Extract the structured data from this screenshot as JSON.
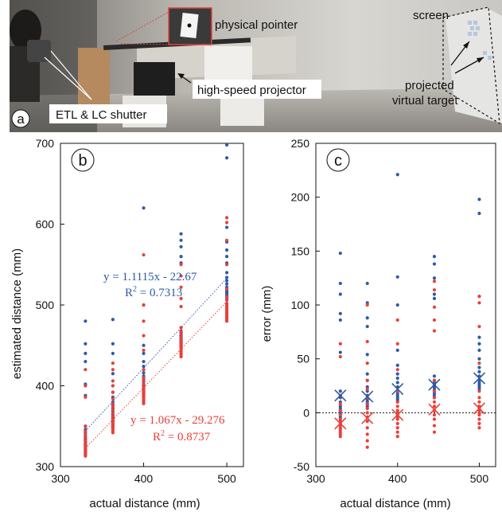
{
  "photo": {
    "panel_label": "a",
    "labels": {
      "physical_pointer": "physical pointer",
      "screen": "screen",
      "high_speed_projector": "high-speed projector",
      "projected_target_line1": "projected",
      "projected_target_line2": "virtual target",
      "etl_lc_shutter": "ETL & LC shutter"
    }
  },
  "chart_data": [
    {
      "type": "scatter",
      "panel_label": "b",
      "xlabel": "actual distance (mm)",
      "ylabel": "estimated distance (mm)",
      "xlim": [
        300,
        520
      ],
      "ylim": [
        300,
        700
      ],
      "xticks": [
        300,
        400,
        500
      ],
      "yticks": [
        300,
        400,
        500,
        600,
        700
      ],
      "grid": false,
      "colors": {
        "blue": "#2e5aa8",
        "red": "#e8403a"
      },
      "series": [
        {
          "color_key": "blue",
          "x": [
            330,
            330,
            330,
            330,
            330,
            330,
            330,
            330,
            330,
            330,
            330,
            330,
            330,
            330,
            330,
            330,
            330,
            330,
            330,
            330,
            363,
            363,
            363,
            363,
            363,
            363,
            363,
            363,
            363,
            363,
            363,
            363,
            363,
            363,
            363,
            363,
            363,
            363,
            363,
            363,
            400,
            400,
            400,
            400,
            400,
            400,
            400,
            400,
            400,
            400,
            400,
            400,
            400,
            400,
            400,
            400,
            400,
            400,
            400,
            400,
            445,
            445,
            445,
            445,
            445,
            445,
            445,
            445,
            445,
            445,
            445,
            445,
            445,
            445,
            445,
            445,
            445,
            445,
            445,
            445,
            500,
            500,
            500,
            500,
            500,
            500,
            500,
            500,
            500,
            500,
            500,
            500,
            500,
            500,
            500,
            500,
            500,
            500,
            500,
            500
          ],
          "y": [
            480,
            452,
            440,
            430,
            402,
            388,
            350,
            346,
            342,
            338,
            336,
            334,
            332,
            330,
            328,
            326,
            324,
            322,
            320,
            318,
            482,
            452,
            440,
            415,
            400,
            392,
            386,
            380,
            376,
            372,
            368,
            364,
            362,
            360,
            358,
            356,
            354,
            352,
            350,
            348,
            620,
            500,
            450,
            440,
            430,
            424,
            420,
            416,
            412,
            408,
            405,
            402,
            400,
            398,
            396,
            394,
            392,
            390,
            388,
            386,
            588,
            580,
            572,
            560,
            552,
            472,
            468,
            466,
            464,
            462,
            460,
            458,
            456,
            455,
            454,
            453,
            452,
            451,
            450,
            449,
            698,
            682,
            596,
            578,
            568,
            560,
            552,
            540,
            534,
            530,
            526,
            522,
            520,
            518,
            516,
            514,
            512,
            510,
            508,
            506
          ]
        },
        {
          "color_key": "red",
          "x": [
            330,
            330,
            330,
            330,
            330,
            330,
            330,
            330,
            330,
            330,
            330,
            330,
            330,
            330,
            330,
            330,
            330,
            330,
            330,
            330,
            363,
            363,
            363,
            363,
            363,
            363,
            363,
            363,
            363,
            363,
            363,
            363,
            363,
            363,
            363,
            363,
            363,
            363,
            363,
            363,
            400,
            400,
            400,
            400,
            400,
            400,
            400,
            400,
            400,
            400,
            400,
            400,
            400,
            400,
            400,
            400,
            400,
            400,
            400,
            400,
            445,
            445,
            445,
            445,
            445,
            445,
            445,
            445,
            445,
            445,
            445,
            445,
            445,
            445,
            445,
            445,
            445,
            445,
            445,
            445,
            500,
            500,
            500,
            500,
            500,
            500,
            500,
            500,
            500,
            500,
            500,
            500,
            500,
            500,
            500,
            500,
            500,
            500,
            500,
            500
          ],
          "y": [
            420,
            400,
            386,
            350,
            344,
            340,
            336,
            332,
            330,
            328,
            326,
            324,
            322,
            320,
            318,
            317,
            316,
            315,
            314,
            313,
            428,
            420,
            406,
            400,
            392,
            384,
            378,
            374,
            370,
            366,
            362,
            358,
            356,
            354,
            352,
            350,
            348,
            346,
            344,
            342,
            562,
            500,
            480,
            462,
            444,
            420,
            410,
            406,
            402,
            398,
            396,
            394,
            392,
            390,
            388,
            386,
            384,
            382,
            380,
            378,
            550,
            536,
            522,
            508,
            498,
            472,
            468,
            464,
            460,
            456,
            454,
            452,
            450,
            448,
            446,
            444,
            442,
            440,
            438,
            436,
            608,
            602,
            580,
            550,
            520,
            510,
            506,
            502,
            500,
            498,
            496,
            494,
            492,
            490,
            488,
            486,
            485,
            484,
            482,
            480
          ]
        }
      ],
      "fits": [
        {
          "color_key": "blue",
          "slope": 1.1115,
          "intercept": -22.67,
          "equation": "y = 1.1115x - 22.67",
          "r2_label": "R",
          "r2_value": " = 0.7313"
        },
        {
          "color_key": "red",
          "slope": 1.067,
          "intercept": -29.276,
          "equation": "y = 1.067x - 29.276",
          "r2_label": "R",
          "r2_value": " = 0.8737"
        }
      ]
    },
    {
      "type": "scatter",
      "panel_label": "c",
      "xlabel": "actual distance (mm)",
      "ylabel": "error (mm)",
      "xlim": [
        300,
        520
      ],
      "ylim": [
        -50,
        250
      ],
      "xticks": [
        300,
        400,
        500
      ],
      "yticks": [
        -50,
        0,
        50,
        100,
        150,
        200,
        250
      ],
      "zero_line": true,
      "grid": false,
      "colors": {
        "blue": "#2e5aa8",
        "red": "#e8403a"
      },
      "series": [
        {
          "color_key": "blue",
          "x": [
            330,
            330,
            330,
            330,
            330,
            330,
            330,
            330,
            330,
            330,
            330,
            330,
            330,
            330,
            330,
            363,
            363,
            363,
            363,
            363,
            363,
            363,
            363,
            363,
            363,
            363,
            363,
            363,
            363,
            363,
            400,
            400,
            400,
            400,
            400,
            400,
            400,
            400,
            400,
            400,
            400,
            400,
            400,
            400,
            400,
            445,
            445,
            445,
            445,
            445,
            445,
            445,
            445,
            445,
            445,
            445,
            445,
            445,
            445,
            445,
            500,
            500,
            500,
            500,
            500,
            500,
            500,
            500,
            500,
            500,
            500,
            500,
            500,
            500,
            500
          ],
          "y": [
            148,
            120,
            110,
            92,
            86,
            56,
            20,
            14,
            10,
            6,
            4,
            2,
            0,
            -2,
            -4,
            120,
            102,
            88,
            80,
            54,
            36,
            30,
            24,
            20,
            16,
            12,
            10,
            8,
            6,
            4,
            221,
            126,
            100,
            58,
            44,
            36,
            32,
            28,
            24,
            20,
            18,
            16,
            14,
            12,
            10,
            145,
            138,
            125,
            110,
            106,
            34,
            30,
            28,
            26,
            24,
            22,
            20,
            18,
            16,
            14,
            198,
            185,
            108,
            70,
            64,
            58,
            50,
            42,
            38,
            34,
            30,
            28,
            26,
            24,
            22
          ]
        },
        {
          "color_key": "red",
          "x": [
            330,
            330,
            330,
            330,
            330,
            330,
            330,
            330,
            330,
            330,
            330,
            330,
            330,
            330,
            330,
            363,
            363,
            363,
            363,
            363,
            363,
            363,
            363,
            363,
            363,
            363,
            363,
            363,
            363,
            363,
            400,
            400,
            400,
            400,
            400,
            400,
            400,
            400,
            400,
            400,
            400,
            400,
            400,
            400,
            400,
            445,
            445,
            445,
            445,
            445,
            445,
            445,
            445,
            445,
            445,
            445,
            445,
            445,
            445,
            445,
            500,
            500,
            500,
            500,
            500,
            500,
            500,
            500,
            500,
            500,
            500,
            500,
            500,
            500,
            500
          ],
          "y": [
            64,
            52,
            16,
            8,
            2,
            -2,
            -6,
            -8,
            -10,
            -12,
            -14,
            -16,
            -18,
            -20,
            -22,
            100,
            66,
            46,
            30,
            22,
            14,
            8,
            4,
            0,
            -4,
            -8,
            -14,
            -20,
            -26,
            -32,
            86,
            64,
            40,
            20,
            10,
            6,
            2,
            0,
            -2,
            -4,
            -6,
            -10,
            -14,
            -18,
            -22,
            122,
            114,
            98,
            86,
            76,
            30,
            20,
            14,
            10,
            6,
            2,
            -2,
            -6,
            -12,
            -18,
            108,
            102,
            80,
            46,
            20,
            14,
            10,
            6,
            4,
            2,
            0,
            -2,
            -6,
            -10,
            -14
          ]
        }
      ],
      "mean_markers": [
        {
          "color_key": "blue",
          "x": [
            330,
            363,
            400,
            445,
            500
          ],
          "y": [
            16,
            15,
            22,
            26,
            32
          ]
        },
        {
          "color_key": "red",
          "x": [
            330,
            363,
            400,
            445,
            500
          ],
          "y": [
            -10,
            -5,
            -2,
            3,
            4
          ]
        }
      ]
    }
  ]
}
